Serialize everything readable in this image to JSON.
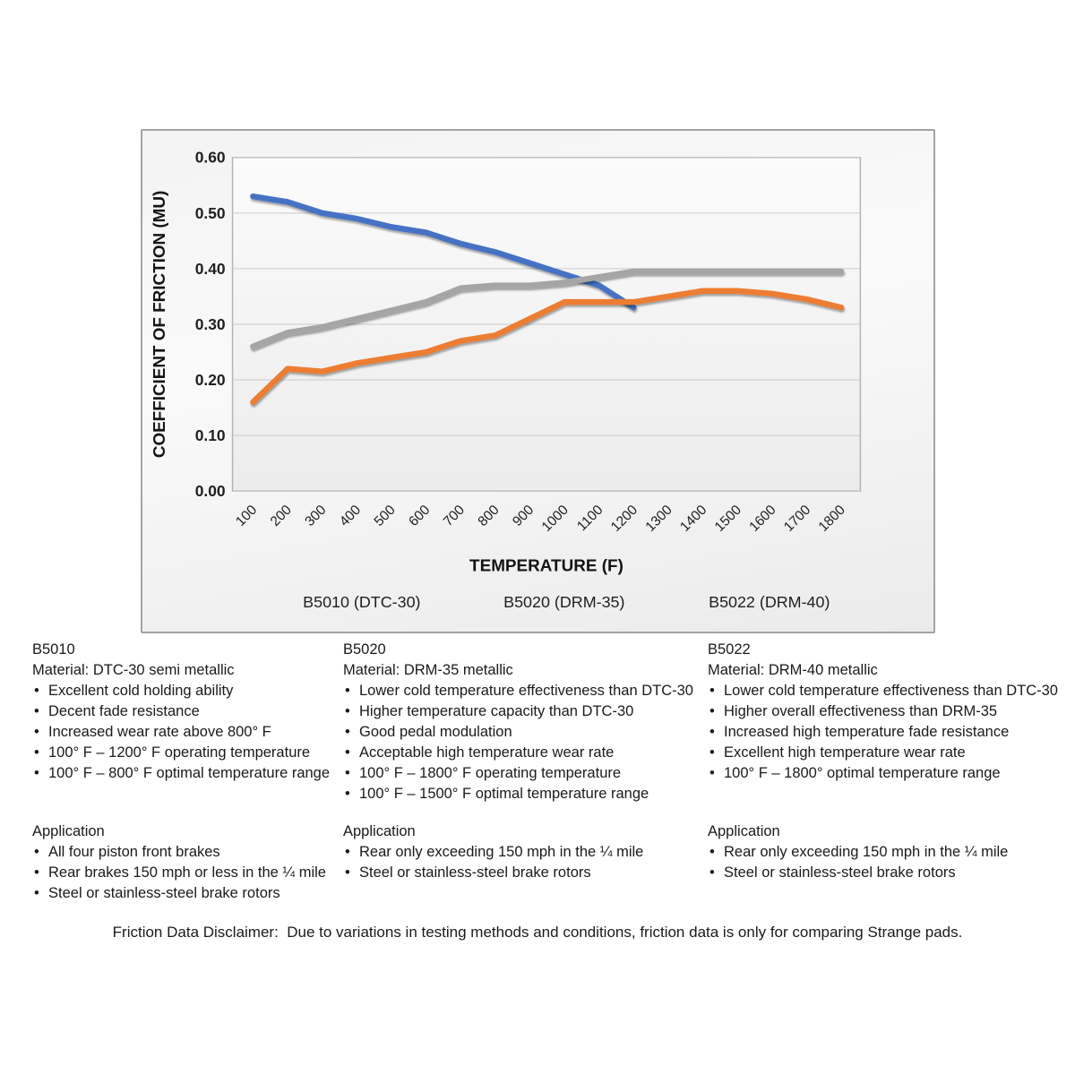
{
  "chart_data": {
    "type": "line",
    "title": "",
    "xlabel": "TEMPERATURE (F)",
    "ylabel": "COEFFICIENT OF FRICTION (MU)",
    "categories": [
      "100",
      "200",
      "300",
      "400",
      "500",
      "600",
      "700",
      "800",
      "900",
      "1000",
      "1100",
      "1200",
      "1300",
      "1400",
      "1500",
      "1600",
      "1700",
      "1800"
    ],
    "ylim": [
      0,
      0.6
    ],
    "yticks": [
      "0.60",
      "0.50",
      "0.40",
      "0.30",
      "0.20",
      "0.10",
      "0.00"
    ],
    "grid": true,
    "legend_position": "bottom",
    "series": [
      {
        "name": "B5010 (DTC-30)",
        "color": "#4472C4",
        "values": [
          0.53,
          0.52,
          0.5,
          0.49,
          0.475,
          0.465,
          0.445,
          0.43,
          0.41,
          0.39,
          0.37,
          0.33
        ]
      },
      {
        "name": "B5020 (DRM-35)",
        "color": "#ED7D31",
        "values": [
          0.16,
          0.22,
          0.215,
          0.23,
          0.24,
          0.25,
          0.27,
          0.28,
          0.31,
          0.34,
          0.34,
          0.34,
          0.35,
          0.36,
          0.36,
          0.355,
          0.345,
          0.33
        ]
      },
      {
        "name": "B5022 (DRM-40)",
        "color": "#A5A5A5",
        "values": [
          0.26,
          0.285,
          0.295,
          0.31,
          0.325,
          0.34,
          0.365,
          0.37,
          0.37,
          0.375,
          0.385,
          0.395,
          0.395,
          0.395,
          0.395,
          0.395,
          0.395,
          0.395
        ]
      }
    ]
  },
  "products": [
    {
      "code": "B5010",
      "material": "Material: DTC-30 semi metallic",
      "features": [
        "Excellent cold holding ability",
        "Decent fade resistance",
        "Increased wear rate above 800° F",
        "100° F – 1200° F operating temperature",
        "100° F – 800° F optimal temperature range"
      ],
      "application_heading": "Application",
      "applications": [
        "All four piston front brakes",
        "Rear brakes 150 mph or less in the ¼ mile",
        "Steel or stainless-steel brake rotors"
      ]
    },
    {
      "code": "B5020",
      "material": "Material: DRM-35 metallic",
      "features": [
        "Lower cold temperature effectiveness than DTC-30",
        "Higher temperature capacity than DTC-30",
        "Good pedal modulation",
        "Acceptable high temperature wear rate",
        "100° F – 1800° F operating temperature",
        "100° F – 1500° F optimal temperature range"
      ],
      "application_heading": "Application",
      "applications": [
        "Rear only exceeding 150 mph in the ¼ mile",
        "Steel or stainless-steel brake rotors"
      ]
    },
    {
      "code": "B5022",
      "material": "Material: DRM-40 metallic",
      "features": [
        "Lower cold temperature effectiveness than DTC-30",
        "Higher overall effectiveness than DRM-35",
        "Increased high temperature fade resistance",
        "Excellent high temperature wear rate",
        "100° F – 1800° optimal temperature range"
      ],
      "application_heading": "Application",
      "applications": [
        "Rear only exceeding 150 mph in the ¼ mile",
        "Steel or stainless-steel brake rotors"
      ]
    }
  ],
  "disclaimer": "Friction Data Disclaimer:  Due to variations in testing methods and conditions, friction data is only for comparing Strange pads."
}
